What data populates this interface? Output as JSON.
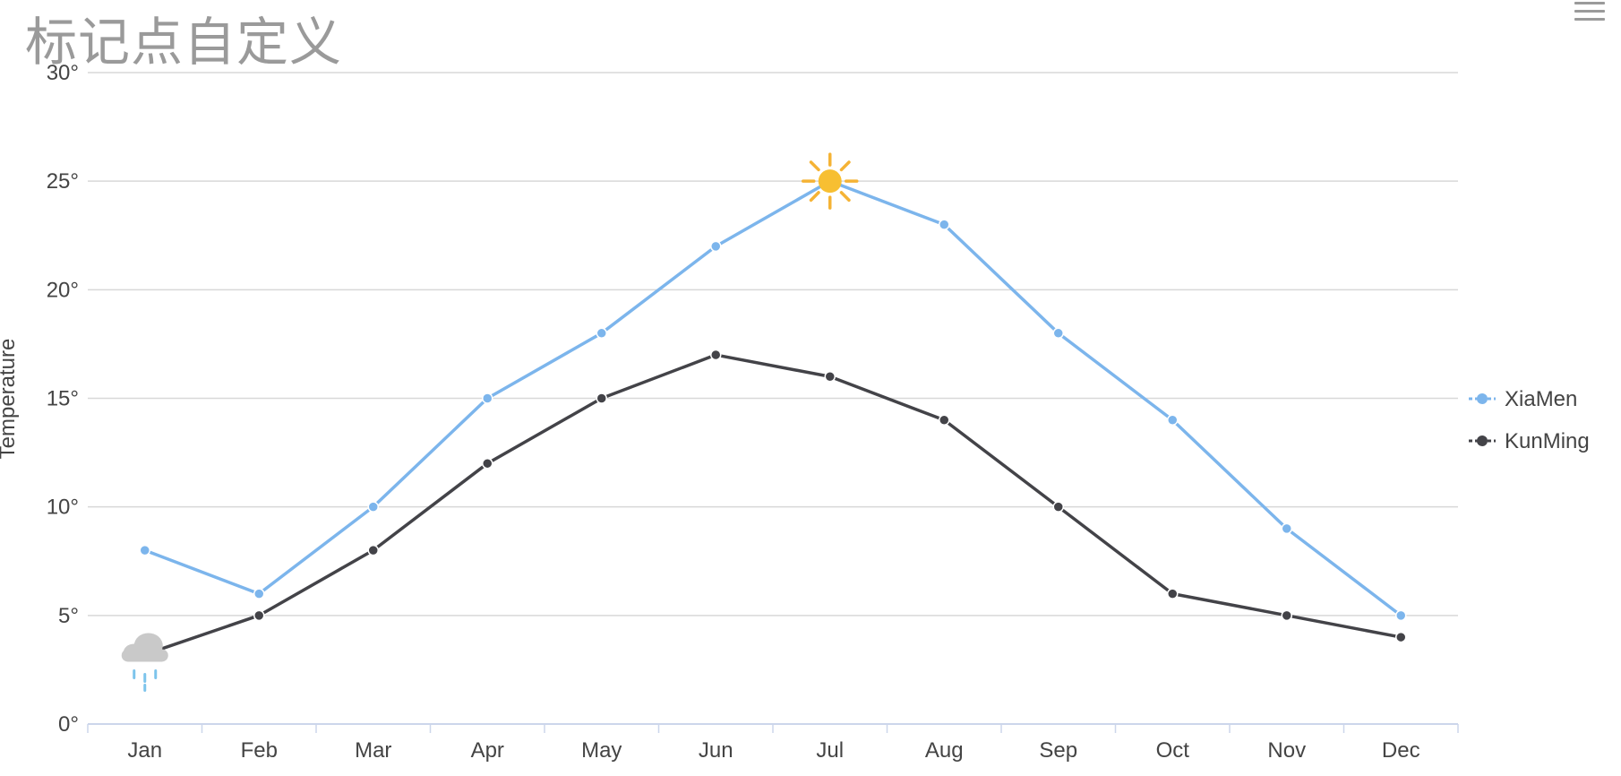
{
  "chart_data": {
    "type": "line",
    "title": "标记点自定义",
    "ylabel": "Temperature",
    "y_tick_suffix": "°",
    "ylim": [
      0,
      30
    ],
    "y_ticks": [
      0,
      5,
      10,
      15,
      20,
      25,
      30
    ],
    "grid": true,
    "legend_position": "right-middle",
    "categories": [
      "Jan",
      "Feb",
      "Mar",
      "Apr",
      "May",
      "Jun",
      "Jul",
      "Aug",
      "Sep",
      "Oct",
      "Nov",
      "Dec"
    ],
    "series": [
      {
        "name": "XiaMen",
        "color": "#7cb5ec",
        "values": [
          8,
          6,
          10,
          15,
          18,
          22,
          25,
          23,
          18,
          14,
          9,
          5
        ],
        "special_marker": {
          "index": 6,
          "icon": "sun-icon"
        }
      },
      {
        "name": "KunMing",
        "color": "#434348",
        "values": [
          3.2,
          5,
          8,
          12,
          15,
          17,
          16,
          14,
          10,
          6,
          5,
          4
        ],
        "special_marker": {
          "index": 0,
          "icon": "rain-cloud-icon"
        }
      }
    ]
  },
  "menu_icon": "hamburger-menu-icon"
}
